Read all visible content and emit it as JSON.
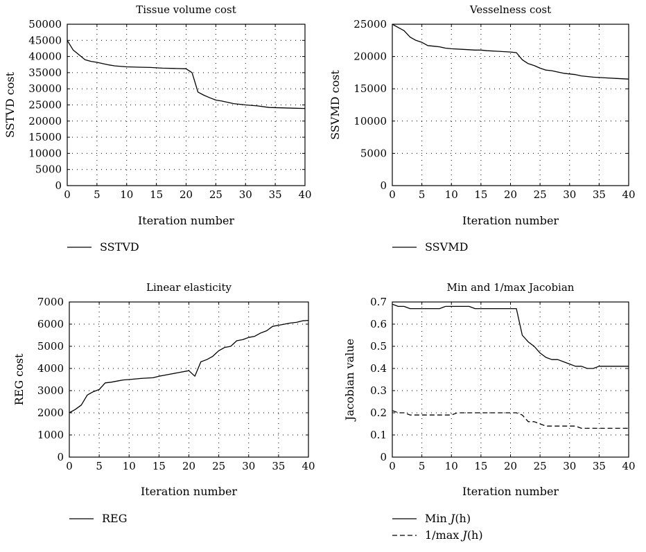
{
  "chart_data": [
    {
      "type": "line",
      "title": "Tissue volume cost",
      "xlabel": "Iteration number",
      "ylabel": "SSTVD cost",
      "xlim": [
        0,
        40
      ],
      "ylim": [
        0,
        50000
      ],
      "xticks": [
        0,
        5,
        10,
        15,
        20,
        25,
        30,
        35,
        40
      ],
      "yticks": [
        0,
        5000,
        10000,
        15000,
        20000,
        25000,
        30000,
        35000,
        40000,
        45000,
        50000
      ],
      "grid": true,
      "legend_position": "below",
      "series": [
        {
          "name": "SSTVD",
          "style": "solid",
          "color": "#000000",
          "x": [
            0,
            1,
            2,
            3,
            4,
            5,
            6,
            7,
            8,
            10,
            12,
            14,
            16,
            18,
            20,
            21,
            22,
            23,
            24,
            25,
            26,
            27,
            28,
            30,
            32,
            34,
            36,
            38,
            40
          ],
          "y": [
            45000,
            42000,
            40500,
            39000,
            38500,
            38200,
            37800,
            37400,
            37100,
            36800,
            36700,
            36600,
            36400,
            36300,
            36200,
            35000,
            29000,
            28000,
            27200,
            26500,
            26200,
            25800,
            25400,
            25000,
            24700,
            24200,
            24100,
            24000,
            23900
          ]
        }
      ]
    },
    {
      "type": "line",
      "title": "Vesselness cost",
      "xlabel": "Iteration number",
      "ylabel": "SSVMD cost",
      "xlim": [
        0,
        40
      ],
      "ylim": [
        0,
        25000
      ],
      "xticks": [
        0,
        5,
        10,
        15,
        20,
        25,
        30,
        35,
        40
      ],
      "yticks": [
        0,
        5000,
        10000,
        15000,
        20000,
        25000
      ],
      "grid": true,
      "legend_position": "below",
      "series": [
        {
          "name": "SSVMD",
          "style": "solid",
          "color": "#000000",
          "x": [
            0,
            1,
            2,
            3,
            4,
            5,
            6,
            7,
            8,
            9,
            10,
            12,
            14,
            15,
            16,
            18,
            20,
            21,
            22,
            23,
            24,
            25,
            26,
            27,
            28,
            29,
            30,
            31,
            32,
            33,
            34,
            36,
            38,
            40
          ],
          "y": [
            25000,
            24500,
            24000,
            23000,
            22500,
            22200,
            21700,
            21600,
            21500,
            21300,
            21200,
            21100,
            21000,
            21000,
            20900,
            20800,
            20700,
            20600,
            19500,
            18900,
            18600,
            18200,
            17900,
            17800,
            17600,
            17400,
            17300,
            17200,
            17000,
            16900,
            16800,
            16700,
            16600,
            16500
          ]
        }
      ]
    },
    {
      "type": "line",
      "title": "Linear elasticity",
      "xlabel": "Iteration number",
      "ylabel": "REG cost",
      "xlim": [
        0,
        40
      ],
      "ylim": [
        0,
        7000
      ],
      "xticks": [
        0,
        5,
        10,
        15,
        20,
        25,
        30,
        35,
        40
      ],
      "yticks": [
        0,
        1000,
        2000,
        3000,
        4000,
        5000,
        6000,
        7000
      ],
      "grid": true,
      "legend_position": "below",
      "series": [
        {
          "name": "REG",
          "style": "solid",
          "color": "#000000",
          "x": [
            0,
            1,
            2,
            3,
            4,
            5,
            6,
            7,
            8,
            9,
            10,
            12,
            14,
            15,
            16,
            18,
            20,
            21,
            22,
            23,
            24,
            25,
            26,
            27,
            28,
            29,
            30,
            31,
            32,
            33,
            34,
            35,
            36,
            37,
            38,
            39,
            40
          ],
          "y": [
            2000,
            2150,
            2350,
            2800,
            2950,
            3050,
            3350,
            3380,
            3430,
            3480,
            3500,
            3550,
            3580,
            3650,
            3700,
            3800,
            3900,
            3650,
            4300,
            4400,
            4550,
            4800,
            4950,
            5000,
            5250,
            5300,
            5400,
            5450,
            5600,
            5700,
            5900,
            5950,
            6000,
            6050,
            6080,
            6150,
            6170
          ]
        }
      ]
    },
    {
      "type": "line",
      "title": "Min and 1/max Jacobian",
      "xlabel": "Iteration number",
      "ylabel": "Jacobian value",
      "xlim": [
        0,
        40
      ],
      "ylim": [
        0,
        0.7
      ],
      "xticks": [
        0,
        5,
        10,
        15,
        20,
        25,
        30,
        35,
        40
      ],
      "yticks": [
        0,
        0.1,
        0.2,
        0.3,
        0.4,
        0.5,
        0.6,
        0.7
      ],
      "grid": true,
      "legend_position": "below",
      "series": [
        {
          "name": "Min J(h)",
          "legend_prefix": "Min ",
          "legend_math": "J",
          "legend_suffix": "(h)",
          "style": "solid",
          "color": "#000000",
          "x": [
            0,
            1,
            2,
            3,
            4,
            5,
            6,
            7,
            8,
            9,
            10,
            11,
            12,
            13,
            14,
            15,
            16,
            17,
            18,
            19,
            20,
            21,
            22,
            23,
            24,
            25,
            26,
            27,
            28,
            29,
            30,
            31,
            32,
            33,
            34,
            35,
            36,
            37,
            38,
            39,
            40
          ],
          "y": [
            0.69,
            0.68,
            0.68,
            0.67,
            0.67,
            0.67,
            0.67,
            0.67,
            0.67,
            0.68,
            0.68,
            0.68,
            0.68,
            0.68,
            0.67,
            0.67,
            0.67,
            0.67,
            0.67,
            0.67,
            0.67,
            0.67,
            0.55,
            0.52,
            0.5,
            0.47,
            0.45,
            0.44,
            0.44,
            0.43,
            0.42,
            0.41,
            0.41,
            0.4,
            0.4,
            0.41,
            0.41,
            0.41,
            0.41,
            0.41,
            0.41
          ]
        },
        {
          "name": "1/max J(h)",
          "legend_prefix": "1/max ",
          "legend_math": "J",
          "legend_suffix": "(h)",
          "style": "dashed",
          "color": "#000000",
          "x": [
            0,
            1,
            2,
            3,
            5,
            8,
            10,
            11,
            13,
            15,
            18,
            20,
            21,
            22,
            23,
            24,
            25,
            26,
            28,
            30,
            31,
            32,
            33,
            35,
            38,
            40
          ],
          "y": [
            0.21,
            0.2,
            0.2,
            0.19,
            0.19,
            0.19,
            0.19,
            0.2,
            0.2,
            0.2,
            0.2,
            0.2,
            0.2,
            0.19,
            0.16,
            0.16,
            0.15,
            0.14,
            0.14,
            0.14,
            0.14,
            0.13,
            0.13,
            0.13,
            0.13,
            0.13
          ]
        }
      ]
    }
  ]
}
